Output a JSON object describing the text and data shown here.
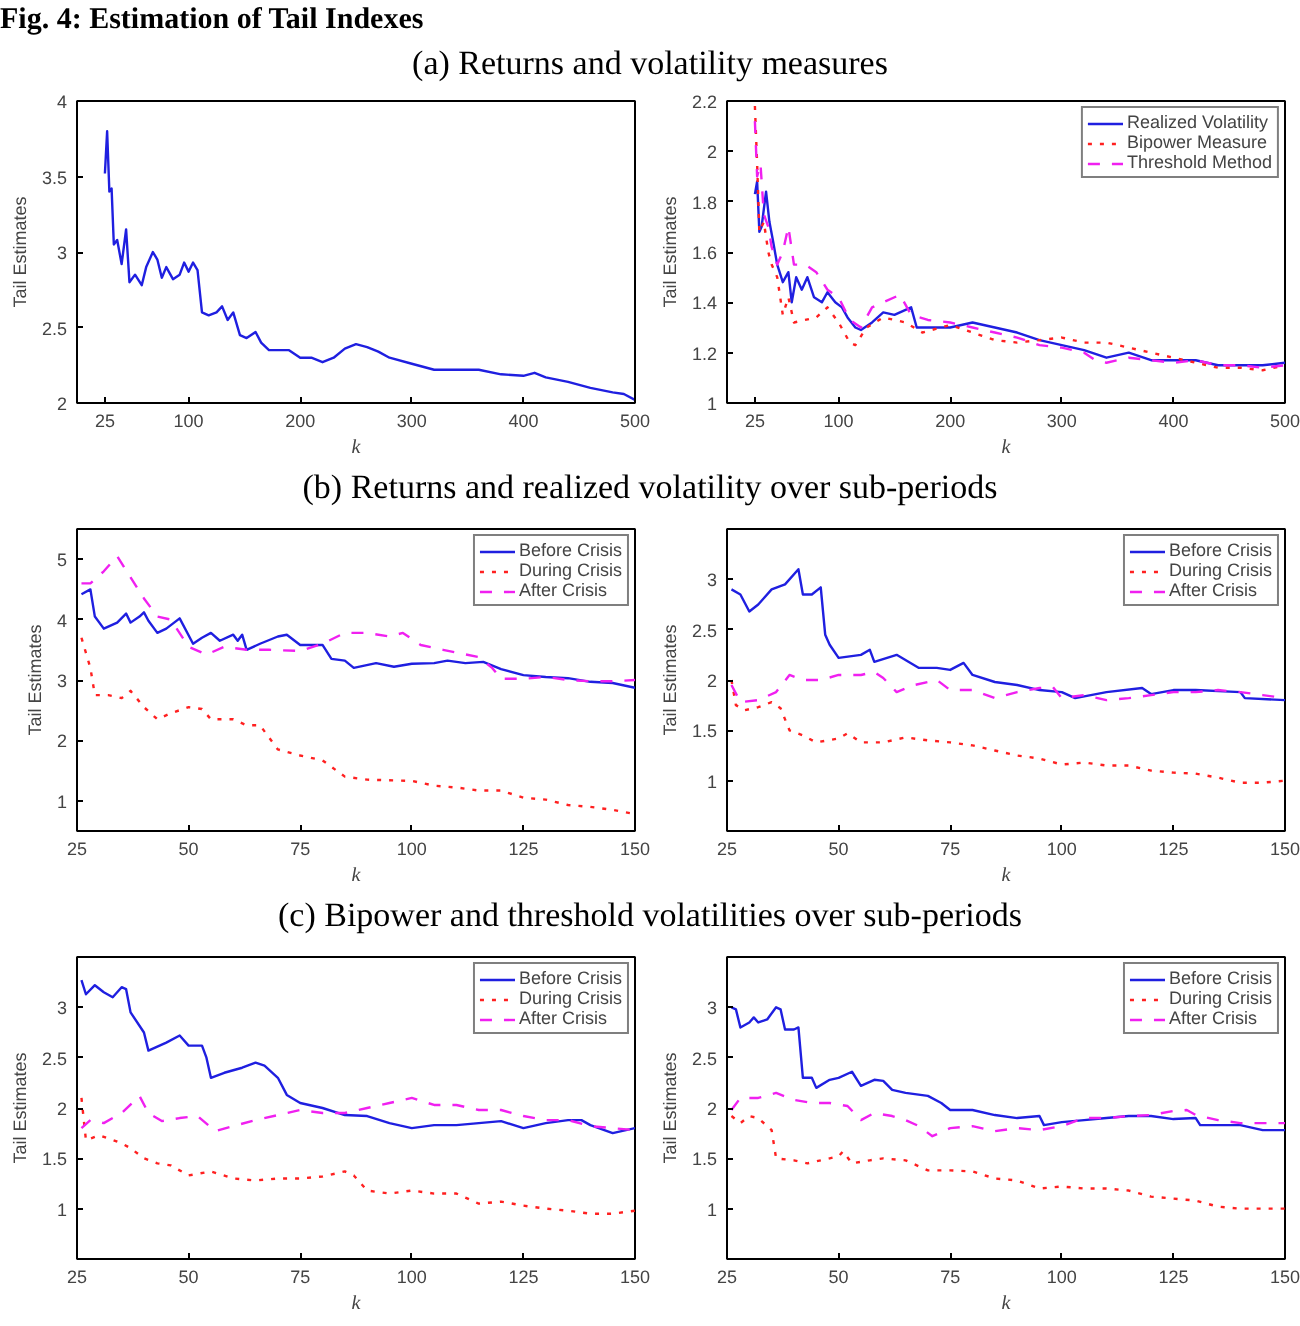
{
  "chart_data": [
    {
      "type": "line",
      "title": "Fig. 4: Estimation of Tail Indexes",
      "subtitle": "(a) Returns and volatility measures",
      "xlabel": "k",
      "ylabel": "Tail Estimates",
      "xlim": [
        0,
        500
      ],
      "ylim": [
        2,
        4
      ],
      "xticks": [
        25,
        100,
        200,
        300,
        400,
        500
      ],
      "yticks": [
        2,
        2.5,
        3,
        3.5,
        4
      ],
      "grid": false,
      "legend": false,
      "series": [
        {
          "color": "#1f1fe0",
          "line_style": "solid",
          "x": [
            25,
            27,
            29,
            31,
            33,
            36,
            40,
            44,
            47,
            52,
            58,
            62,
            68,
            72,
            76,
            80,
            86,
            92,
            96,
            100,
            104,
            108,
            112,
            118,
            125,
            130,
            135,
            140,
            146,
            152,
            160,
            165,
            172,
            180,
            190,
            200,
            210,
            220,
            230,
            240,
            250,
            260,
            270,
            280,
            300,
            320,
            340,
            360,
            380,
            400,
            410,
            420,
            440,
            460,
            480,
            490,
            500
          ],
          "values": [
            3.52,
            3.8,
            3.4,
            3.42,
            3.05,
            3.08,
            2.92,
            3.15,
            2.8,
            2.85,
            2.78,
            2.9,
            3.0,
            2.95,
            2.83,
            2.9,
            2.82,
            2.85,
            2.93,
            2.87,
            2.93,
            2.88,
            2.6,
            2.58,
            2.6,
            2.64,
            2.55,
            2.6,
            2.45,
            2.43,
            2.47,
            2.4,
            2.35,
            2.35,
            2.35,
            2.3,
            2.3,
            2.27,
            2.3,
            2.36,
            2.39,
            2.37,
            2.34,
            2.3,
            2.26,
            2.22,
            2.22,
            2.22,
            2.19,
            2.18,
            2.2,
            2.17,
            2.14,
            2.1,
            2.07,
            2.06,
            2.02
          ]
        }
      ]
    },
    {
      "type": "line",
      "xlabel": "k",
      "ylabel": "Tail Estimates",
      "xlim": [
        0,
        500
      ],
      "ylim": [
        1,
        2.2
      ],
      "xticks": [
        25,
        100,
        200,
        300,
        400,
        500
      ],
      "yticks": [
        1,
        1.2,
        1.4,
        1.6,
        1.8,
        2,
        2.2
      ],
      "grid": false,
      "legend": "top right",
      "series": [
        {
          "name": "Realized Volatility",
          "color": "#1f1fe0",
          "line_style": "solid",
          "x": [
            25,
            27,
            29,
            31,
            35,
            38,
            41,
            45,
            50,
            55,
            58,
            62,
            67,
            72,
            78,
            85,
            90,
            97,
            103,
            108,
            115,
            120,
            130,
            140,
            150,
            165,
            170,
            180,
            200,
            220,
            240,
            260,
            280,
            300,
            320,
            340,
            360,
            380,
            400,
            420,
            440,
            460,
            480,
            500
          ],
          "values": [
            1.83,
            1.88,
            1.68,
            1.7,
            1.84,
            1.72,
            1.65,
            1.55,
            1.48,
            1.52,
            1.4,
            1.5,
            1.45,
            1.5,
            1.42,
            1.4,
            1.44,
            1.4,
            1.38,
            1.34,
            1.3,
            1.29,
            1.32,
            1.36,
            1.35,
            1.38,
            1.3,
            1.3,
            1.3,
            1.32,
            1.3,
            1.28,
            1.25,
            1.23,
            1.21,
            1.18,
            1.2,
            1.17,
            1.17,
            1.17,
            1.15,
            1.15,
            1.15,
            1.16
          ]
        },
        {
          "name": "Bipower Measure",
          "color": "#ff2020",
          "line_style": "dotted",
          "x": [
            25,
            27,
            29,
            33,
            37,
            40,
            45,
            50,
            55,
            60,
            70,
            80,
            90,
            100,
            110,
            115,
            125,
            140,
            160,
            175,
            200,
            220,
            240,
            260,
            280,
            300,
            320,
            340,
            360,
            380,
            400,
            420,
            440,
            460,
            480,
            500
          ],
          "values": [
            2.18,
            1.95,
            1.68,
            1.72,
            1.6,
            1.55,
            1.5,
            1.35,
            1.42,
            1.32,
            1.33,
            1.34,
            1.38,
            1.32,
            1.24,
            1.23,
            1.3,
            1.34,
            1.32,
            1.28,
            1.31,
            1.28,
            1.25,
            1.24,
            1.25,
            1.26,
            1.24,
            1.24,
            1.22,
            1.2,
            1.18,
            1.16,
            1.14,
            1.14,
            1.13,
            1.15
          ]
        },
        {
          "name": "Threshold Method",
          "color": "#f020f0",
          "line_style": "dashed",
          "x": [
            25,
            27,
            30,
            33,
            37,
            40,
            45,
            50,
            55,
            60,
            70,
            80,
            90,
            100,
            110,
            120,
            130,
            140,
            155,
            165,
            180,
            200,
            220,
            240,
            260,
            280,
            300,
            320,
            330,
            340,
            360,
            380,
            400,
            420,
            440,
            460,
            480,
            500
          ],
          "values": [
            2.12,
            1.9,
            1.95,
            1.75,
            1.7,
            1.62,
            1.55,
            1.6,
            1.7,
            1.55,
            1.55,
            1.52,
            1.45,
            1.42,
            1.33,
            1.3,
            1.38,
            1.4,
            1.43,
            1.35,
            1.33,
            1.32,
            1.3,
            1.28,
            1.26,
            1.23,
            1.22,
            1.2,
            1.17,
            1.16,
            1.18,
            1.17,
            1.16,
            1.17,
            1.15,
            1.15,
            1.14,
            1.15
          ]
        }
      ]
    },
    {
      "type": "line",
      "title": "(b) Returns and realized volatility over sub-periods",
      "xlabel": "k",
      "ylabel": "Tail Estimates",
      "xlim": [
        25,
        150
      ],
      "ylim": [
        0.5,
        5.5
      ],
      "xticks": [
        25,
        50,
        75,
        100,
        125,
        150
      ],
      "yticks": [
        1,
        2,
        3,
        4,
        5
      ],
      "grid": false,
      "legend": "top right",
      "series": [
        {
          "name": "Before Crisis",
          "color": "#1f1fe0",
          "line_style": "solid",
          "x": [
            26,
            28,
            29,
            31,
            34,
            36,
            37,
            39,
            40,
            41,
            43,
            45,
            48,
            51,
            53,
            55,
            57,
            60,
            61,
            62,
            63,
            66,
            70,
            72,
            75,
            80,
            82,
            85,
            87,
            92,
            96,
            100,
            105,
            108,
            112,
            116,
            120,
            125,
            130,
            135,
            140,
            145,
            150
          ],
          "values": [
            4.42,
            4.5,
            4.05,
            3.85,
            3.95,
            4.1,
            3.95,
            4.05,
            4.12,
            3.98,
            3.78,
            3.85,
            4.02,
            3.6,
            3.7,
            3.78,
            3.65,
            3.75,
            3.65,
            3.75,
            3.5,
            3.6,
            3.72,
            3.75,
            3.58,
            3.58,
            3.35,
            3.32,
            3.2,
            3.28,
            3.22,
            3.27,
            3.28,
            3.32,
            3.28,
            3.3,
            3.18,
            3.08,
            3.05,
            3.03,
            2.97,
            2.95,
            2.87
          ]
        },
        {
          "name": "During Crisis",
          "color": "#ff2020",
          "line_style": "dotted",
          "x": [
            26,
            28,
            29,
            32,
            35,
            37,
            40,
            43,
            46,
            50,
            53,
            55,
            60,
            63,
            66,
            70,
            75,
            80,
            85,
            90,
            100,
            105,
            110,
            115,
            120,
            125,
            130,
            135,
            140,
            145,
            150
          ],
          "values": [
            3.7,
            3.2,
            2.75,
            2.75,
            2.7,
            2.82,
            2.55,
            2.35,
            2.45,
            2.55,
            2.52,
            2.35,
            2.35,
            2.25,
            2.25,
            1.85,
            1.75,
            1.67,
            1.4,
            1.35,
            1.33,
            1.25,
            1.22,
            1.17,
            1.17,
            1.05,
            1.02,
            0.93,
            0.9,
            0.85,
            0.78
          ]
        },
        {
          "name": "After Crisis",
          "color": "#f020f0",
          "line_style": "dashed",
          "x": [
            26,
            28,
            31,
            34,
            37,
            40,
            43,
            46,
            50,
            54,
            58,
            63,
            68,
            75,
            80,
            85,
            90,
            95,
            98,
            102,
            107,
            115,
            118,
            120,
            125,
            130,
            135,
            140,
            145,
            150
          ],
          "values": [
            4.6,
            4.6,
            4.8,
            5.05,
            4.7,
            4.35,
            4.05,
            4.0,
            3.55,
            3.42,
            3.55,
            3.5,
            3.5,
            3.48,
            3.6,
            3.78,
            3.78,
            3.72,
            3.78,
            3.58,
            3.5,
            3.38,
            3.2,
            3.02,
            3.02,
            3.05,
            3.0,
            2.98,
            2.98,
            3.0
          ]
        }
      ]
    },
    {
      "type": "line",
      "xlabel": "k",
      "ylabel": "Tail Estimates",
      "xlim": [
        25,
        150
      ],
      "ylim": [
        0.5,
        3.5
      ],
      "xticks": [
        25,
        50,
        75,
        100,
        125,
        150
      ],
      "yticks": [
        1,
        1.5,
        2,
        2.5,
        3
      ],
      "grid": false,
      "legend": "top right",
      "series": [
        {
          "name": "Before Crisis",
          "color": "#1f1fe0",
          "line_style": "solid",
          "x": [
            26,
            28,
            30,
            32,
            35,
            38,
            41,
            42,
            44,
            46,
            47,
            48,
            50,
            55,
            57,
            58,
            63,
            68,
            72,
            75,
            78,
            80,
            85,
            90,
            95,
            100,
            103,
            110,
            118,
            120,
            125,
            130,
            140,
            141,
            150
          ],
          "values": [
            2.9,
            2.85,
            2.68,
            2.75,
            2.9,
            2.95,
            3.1,
            2.85,
            2.85,
            2.92,
            2.45,
            2.35,
            2.22,
            2.25,
            2.3,
            2.18,
            2.25,
            2.12,
            2.12,
            2.1,
            2.17,
            2.05,
            1.98,
            1.95,
            1.9,
            1.88,
            1.82,
            1.88,
            1.92,
            1.86,
            1.9,
            1.9,
            1.88,
            1.82,
            1.8
          ]
        },
        {
          "name": "During Crisis",
          "color": "#ff2020",
          "line_style": "dotted",
          "x": [
            26,
            27,
            29,
            32,
            35,
            37,
            39,
            42,
            45,
            50,
            52,
            55,
            60,
            65,
            70,
            75,
            80,
            85,
            90,
            95,
            100,
            105,
            110,
            115,
            120,
            125,
            130,
            135,
            140,
            145,
            150
          ],
          "values": [
            2.0,
            1.75,
            1.7,
            1.73,
            1.78,
            1.72,
            1.5,
            1.45,
            1.38,
            1.42,
            1.47,
            1.38,
            1.38,
            1.43,
            1.4,
            1.38,
            1.35,
            1.3,
            1.25,
            1.22,
            1.16,
            1.18,
            1.15,
            1.15,
            1.1,
            1.08,
            1.07,
            1.03,
            0.98,
            0.98,
            1.0
          ]
        },
        {
          "name": "After Crisis",
          "color": "#f020f0",
          "line_style": "dashed",
          "x": [
            26,
            28,
            32,
            36,
            39,
            42,
            46,
            50,
            55,
            58,
            60,
            63,
            67,
            72,
            75,
            80,
            85,
            90,
            95,
            98,
            100,
            105,
            110,
            115,
            120,
            125,
            130,
            135,
            140,
            145,
            150
          ],
          "values": [
            1.95,
            1.78,
            1.8,
            1.88,
            2.05,
            2.0,
            2.0,
            2.05,
            2.05,
            2.08,
            2.02,
            1.88,
            1.95,
            2.0,
            1.9,
            1.9,
            1.82,
            1.88,
            1.92,
            1.93,
            1.82,
            1.85,
            1.8,
            1.82,
            1.85,
            1.88,
            1.88,
            1.9,
            1.88,
            1.85,
            1.82
          ]
        }
      ]
    },
    {
      "type": "line",
      "title": "(c) Bipower and threshold volatilities over sub-periods",
      "xlabel": "k",
      "ylabel": "Tail Estimates",
      "xlim": [
        25,
        150
      ],
      "ylim": [
        0.5,
        3.5
      ],
      "xticks": [
        25,
        50,
        75,
        100,
        125,
        150
      ],
      "yticks": [
        1,
        1.5,
        2,
        2.5,
        3
      ],
      "grid": false,
      "legend": "top right",
      "series": [
        {
          "name": "Before Crisis",
          "color": "#1f1fe0",
          "line_style": "solid",
          "x": [
            26,
            27,
            29,
            31,
            33,
            35,
            36,
            37,
            40,
            41,
            45,
            48,
            50,
            53,
            54,
            55,
            58,
            62,
            65,
            67,
            70,
            72,
            75,
            80,
            85,
            90,
            95,
            100,
            105,
            110,
            115,
            120,
            125,
            130,
            135,
            138,
            140,
            145,
            150
          ],
          "values": [
            3.27,
            3.13,
            3.22,
            3.15,
            3.1,
            3.2,
            3.18,
            2.95,
            2.75,
            2.57,
            2.65,
            2.72,
            2.62,
            2.62,
            2.5,
            2.3,
            2.35,
            2.4,
            2.45,
            2.42,
            2.3,
            2.13,
            2.05,
            2.0,
            1.93,
            1.92,
            1.85,
            1.8,
            1.83,
            1.83,
            1.85,
            1.87,
            1.8,
            1.85,
            1.88,
            1.88,
            1.83,
            1.75,
            1.8
          ]
        },
        {
          "name": "During Crisis",
          "color": "#ff2020",
          "line_style": "dotted",
          "x": [
            26,
            27,
            30,
            35,
            37,
            40,
            43,
            46,
            50,
            55,
            60,
            65,
            70,
            75,
            80,
            85,
            87,
            90,
            95,
            100,
            105,
            110,
            115,
            120,
            125,
            130,
            135,
            140,
            145,
            150
          ],
          "values": [
            2.1,
            1.68,
            1.73,
            1.65,
            1.6,
            1.5,
            1.45,
            1.43,
            1.33,
            1.37,
            1.3,
            1.28,
            1.3,
            1.3,
            1.32,
            1.37,
            1.33,
            1.18,
            1.15,
            1.18,
            1.15,
            1.15,
            1.05,
            1.07,
            1.03,
            1.0,
            0.98,
            0.95,
            0.95,
            0.98
          ]
        },
        {
          "name": "After Crisis",
          "color": "#f020f0",
          "line_style": "dashed",
          "x": [
            26,
            28,
            31,
            35,
            39,
            41,
            44,
            48,
            52,
            56,
            60,
            65,
            70,
            75,
            80,
            85,
            90,
            95,
            100,
            105,
            110,
            115,
            120,
            125,
            130,
            135,
            140,
            145,
            150
          ],
          "values": [
            1.8,
            1.88,
            1.85,
            1.95,
            2.12,
            1.95,
            1.87,
            1.9,
            1.92,
            1.77,
            1.82,
            1.88,
            1.93,
            1.98,
            1.95,
            1.95,
            2.0,
            2.05,
            2.1,
            2.03,
            2.03,
            1.98,
            1.98,
            1.92,
            1.88,
            1.88,
            1.82,
            1.8,
            1.78
          ]
        }
      ]
    },
    {
      "type": "line",
      "xlabel": "k",
      "ylabel": "Tail Estimates",
      "xlim": [
        25,
        150
      ],
      "ylim": [
        0.5,
        3.5
      ],
      "xticks": [
        25,
        50,
        75,
        100,
        125,
        150
      ],
      "yticks": [
        1,
        1.5,
        2,
        2.5,
        3
      ],
      "grid": false,
      "legend": "top right",
      "series": [
        {
          "name": "Before Crisis",
          "color": "#1f1fe0",
          "line_style": "solid",
          "x": [
            26,
            27,
            28,
            30,
            31,
            32,
            34,
            36,
            37,
            38,
            40,
            41,
            42,
            44,
            45,
            48,
            50,
            53,
            55,
            58,
            60,
            62,
            65,
            70,
            73,
            75,
            80,
            85,
            90,
            95,
            96,
            100,
            105,
            110,
            115,
            120,
            125,
            130,
            131,
            140,
            145,
            150
          ],
          "values": [
            3.0,
            2.98,
            2.8,
            2.85,
            2.9,
            2.85,
            2.88,
            3.0,
            2.98,
            2.78,
            2.78,
            2.8,
            2.3,
            2.3,
            2.2,
            2.28,
            2.3,
            2.36,
            2.22,
            2.28,
            2.27,
            2.18,
            2.15,
            2.12,
            2.05,
            1.98,
            1.98,
            1.93,
            1.9,
            1.92,
            1.83,
            1.86,
            1.88,
            1.9,
            1.92,
            1.92,
            1.89,
            1.9,
            1.83,
            1.83,
            1.78,
            1.78
          ]
        },
        {
          "name": "During Crisis",
          "color": "#ff2020",
          "line_style": "dotted",
          "x": [
            26,
            28,
            30,
            32,
            35,
            36,
            40,
            43,
            46,
            50,
            51,
            53,
            57,
            60,
            65,
            70,
            75,
            80,
            85,
            90,
            95,
            100,
            105,
            110,
            115,
            120,
            125,
            130,
            135,
            140,
            145,
            150
          ],
          "values": [
            1.92,
            1.85,
            1.92,
            1.9,
            1.78,
            1.5,
            1.48,
            1.45,
            1.48,
            1.52,
            1.57,
            1.45,
            1.48,
            1.5,
            1.48,
            1.38,
            1.38,
            1.37,
            1.3,
            1.28,
            1.2,
            1.22,
            1.2,
            1.2,
            1.18,
            1.12,
            1.1,
            1.08,
            1.02,
            1.0,
            1.0,
            1.0
          ]
        },
        {
          "name": "After Crisis",
          "color": "#f020f0",
          "line_style": "dashed",
          "x": [
            26,
            28,
            32,
            36,
            40,
            44,
            48,
            52,
            55,
            58,
            62,
            65,
            68,
            71,
            75,
            80,
            85,
            90,
            95,
            100,
            105,
            110,
            115,
            120,
            125,
            128,
            130,
            135,
            140,
            145,
            150
          ],
          "values": [
            1.98,
            2.1,
            2.1,
            2.15,
            2.08,
            2.05,
            2.05,
            2.02,
            1.88,
            1.95,
            1.92,
            1.88,
            1.82,
            1.72,
            1.8,
            1.82,
            1.77,
            1.8,
            1.78,
            1.82,
            1.9,
            1.9,
            1.92,
            1.93,
            1.97,
            1.98,
            1.93,
            1.88,
            1.85,
            1.85,
            1.85
          ]
        }
      ]
    }
  ]
}
